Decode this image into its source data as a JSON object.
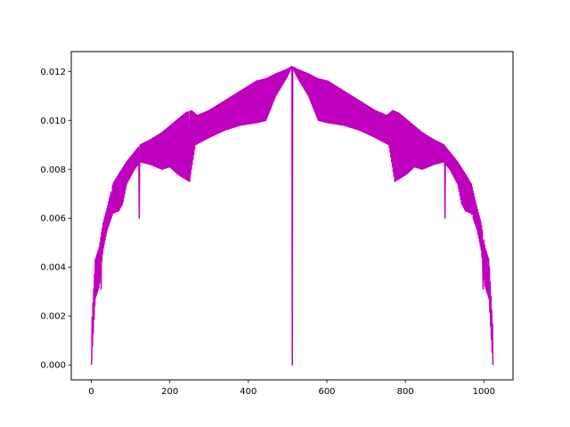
{
  "chart_data": {
    "type": "line",
    "title": "",
    "xlabel": "",
    "ylabel": "",
    "xlim": [
      -51.15,
      1074.15
    ],
    "ylim": [
      -0.00061,
      0.01281
    ],
    "x_ticks": [
      0,
      200,
      400,
      600,
      800,
      1000
    ],
    "x_tick_labels": [
      "0",
      "200",
      "400",
      "600",
      "800",
      "1000"
    ],
    "y_ticks": [
      0.0,
      0.002,
      0.004,
      0.006,
      0.008,
      0.01,
      0.012
    ],
    "y_tick_labels": [
      "0.000",
      "0.002",
      "0.004",
      "0.006",
      "0.008",
      "0.010",
      "0.012"
    ],
    "grid": false,
    "legend": "none",
    "line_color": "#bf00bf",
    "series": [
      {
        "upper_envelope": [
          [
            0,
            0.0014
          ],
          [
            5,
            0.0028
          ],
          [
            10,
            0.0043
          ],
          [
            20,
            0.0048
          ],
          [
            30,
            0.0058
          ],
          [
            40,
            0.0064
          ],
          [
            55,
            0.0074
          ],
          [
            70,
            0.0078
          ],
          [
            90,
            0.0083
          ],
          [
            110,
            0.0087
          ],
          [
            125,
            0.009
          ],
          [
            150,
            0.0092
          ],
          [
            180,
            0.0095
          ],
          [
            210,
            0.0099
          ],
          [
            240,
            0.0103
          ],
          [
            255,
            0.0104
          ],
          [
            270,
            0.0102
          ],
          [
            300,
            0.0104
          ],
          [
            340,
            0.0108
          ],
          [
            380,
            0.0112
          ],
          [
            420,
            0.0116
          ],
          [
            445,
            0.0117
          ],
          [
            470,
            0.0119
          ],
          [
            500,
            0.0121
          ],
          [
            511,
            0.0122
          ]
        ],
        "lower_envelope": [
          [
            0,
            0.0
          ],
          [
            5,
            0.0013
          ],
          [
            10,
            0.0027
          ],
          [
            20,
            0.0032
          ],
          [
            30,
            0.0047
          ],
          [
            40,
            0.0055
          ],
          [
            55,
            0.0062
          ],
          [
            70,
            0.0063
          ],
          [
            80,
            0.0066
          ],
          [
            90,
            0.0074
          ],
          [
            110,
            0.008
          ],
          [
            125,
            0.0083
          ],
          [
            150,
            0.0082
          ],
          [
            180,
            0.008
          ],
          [
            200,
            0.0081
          ],
          [
            220,
            0.0078
          ],
          [
            240,
            0.0076
          ],
          [
            250,
            0.0075
          ],
          [
            265,
            0.009
          ],
          [
            300,
            0.0093
          ],
          [
            340,
            0.0096
          ],
          [
            380,
            0.0098
          ],
          [
            420,
            0.0099
          ],
          [
            445,
            0.01
          ],
          [
            470,
            0.011
          ],
          [
            500,
            0.0118
          ],
          [
            511,
            0.0122
          ]
        ],
        "deep_dips": [
          [
            25,
            0.0031
          ],
          [
            52,
            0.0062
          ],
          [
            122,
            0.006
          ],
          [
            250,
            0.0075
          ],
          [
            512,
            0.0
          ]
        ]
      }
    ]
  }
}
